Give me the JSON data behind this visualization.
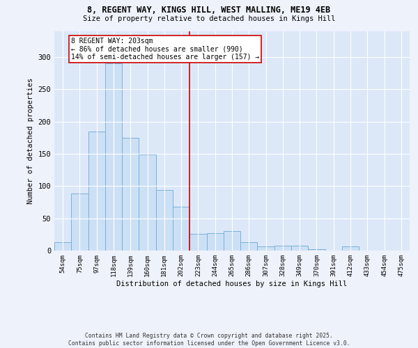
{
  "title_line1": "8, REGENT WAY, KINGS HILL, WEST MALLING, ME19 4EB",
  "title_line2": "Size of property relative to detached houses in Kings Hill",
  "xlabel": "Distribution of detached houses by size in Kings Hill",
  "ylabel": "Number of detached properties",
  "categories": [
    "54sqm",
    "75sqm",
    "97sqm",
    "118sqm",
    "139sqm",
    "160sqm",
    "181sqm",
    "202sqm",
    "223sqm",
    "244sqm",
    "265sqm",
    "286sqm",
    "307sqm",
    "328sqm",
    "349sqm",
    "370sqm",
    "391sqm",
    "412sqm",
    "433sqm",
    "454sqm",
    "475sqm"
  ],
  "values": [
    13,
    88,
    185,
    290,
    175,
    149,
    94,
    68,
    26,
    27,
    30,
    13,
    7,
    8,
    8,
    2,
    0,
    6,
    0,
    0,
    0
  ],
  "bar_color": "#cce0f5",
  "bar_edge_color": "#7ab0d8",
  "vline_x": 7.5,
  "vline_color": "#cc0000",
  "annotation_text": "8 REGENT WAY: 203sqm\n← 86% of detached houses are smaller (990)\n14% of semi-detached houses are larger (157) →",
  "annotation_box_color": "#cc0000",
  "annotation_box_fill": "#ffffff",
  "ylim": [
    0,
    340
  ],
  "yticks": [
    0,
    50,
    100,
    150,
    200,
    250,
    300,
    350
  ],
  "footer_line1": "Contains HM Land Registry data © Crown copyright and database right 2025.",
  "footer_line2": "Contains public sector information licensed under the Open Government Licence v3.0.",
  "bg_color": "#eef2fa",
  "plot_bg_color": "#dce8f8"
}
